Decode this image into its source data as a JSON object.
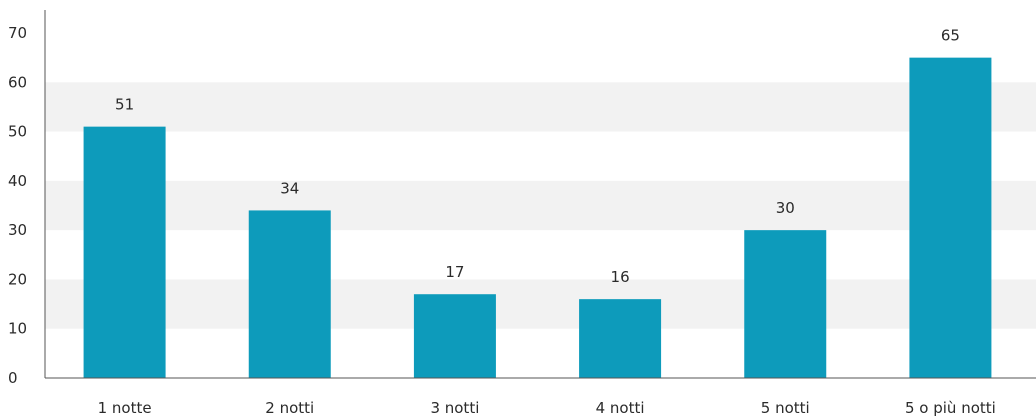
{
  "chart_data": {
    "type": "bar",
    "categories": [
      "1 notte",
      "2 notti",
      "3 notti",
      "4 notti",
      "5 notti",
      "5 o più notti"
    ],
    "values": [
      51,
      34,
      17,
      16,
      30,
      65
    ],
    "data_labels": [
      "51",
      "34",
      "17",
      "16",
      "30",
      "65"
    ],
    "y_ticks": [
      "0",
      "10",
      "20",
      "30",
      "40",
      "50",
      "60",
      "70"
    ],
    "ylim": [
      0,
      70
    ],
    "grid": "alternating horizontal bands",
    "legend": "none",
    "colors": {
      "bar": "#0d9bbb",
      "band": "#f2f2f2",
      "axis": "#555555"
    }
  }
}
